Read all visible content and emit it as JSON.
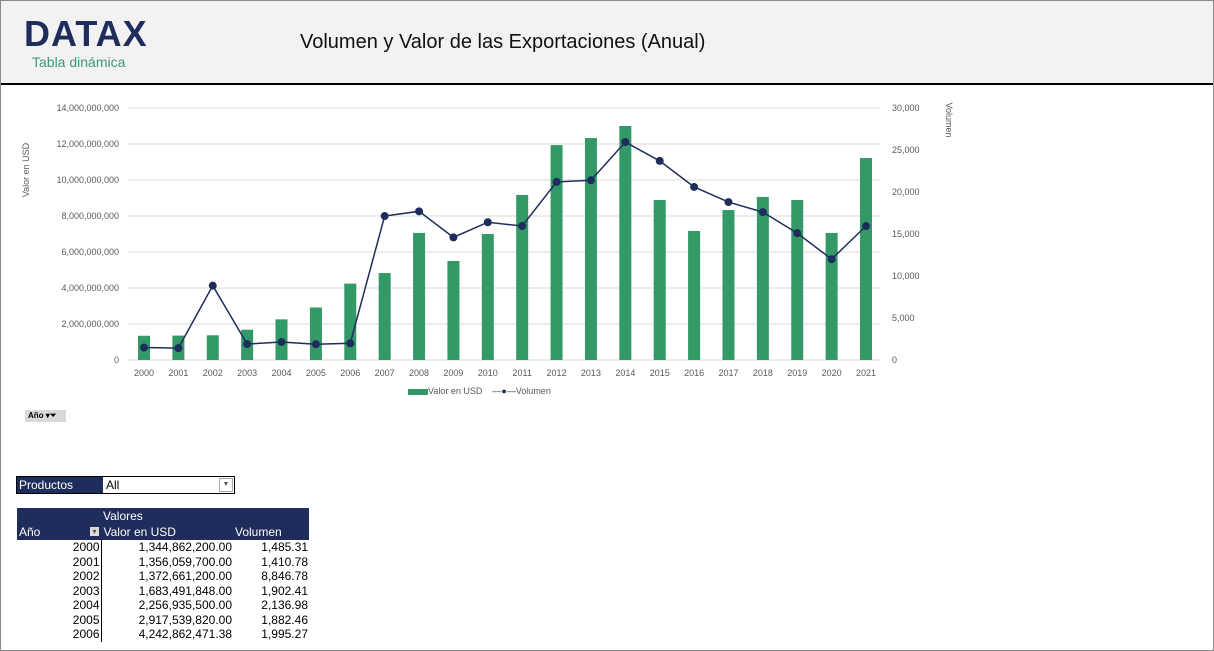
{
  "header": {
    "logo": "DATAX",
    "subtitle": "Tabla dinámica",
    "title": "Volumen y Valor de las Exportaciones (Anual)"
  },
  "chart_data": {
    "type": "bar+line",
    "categories": [
      "2000",
      "2001",
      "2002",
      "2003",
      "2004",
      "2005",
      "2006",
      "2007",
      "2008",
      "2009",
      "2010",
      "2011",
      "2012",
      "2013",
      "2014",
      "2015",
      "2016",
      "2017",
      "2018",
      "2019",
      "2020",
      "2021"
    ],
    "series": [
      {
        "name": "Valor en USD",
        "type": "bar",
        "axis": "left",
        "color": "#339966",
        "values": [
          1344862200,
          1356059700,
          1372661200,
          1683491848,
          2256935500,
          2917539820,
          4242862471.38,
          4830000000,
          7060000000,
          5500000000,
          7000000000,
          9170000000,
          11940000000,
          12330000000,
          13000000000,
          8890000000,
          7170000000,
          8330000000,
          9060000000,
          8890000000,
          7060000000,
          11220000000
        ]
      },
      {
        "name": "Volumen",
        "type": "line",
        "axis": "right",
        "color": "#1f2d5c",
        "values": [
          1485.31,
          1410.78,
          8846.78,
          1902.41,
          2136.98,
          1882.46,
          1995.27,
          17140,
          17700,
          14600,
          16400,
          15950,
          21200,
          21400,
          25950,
          23700,
          20600,
          18800,
          17600,
          15100,
          12000,
          15950
        ]
      }
    ],
    "ylabel": "Valor en USD",
    "y2label": "Volumen",
    "ylim": [
      0,
      14000000000
    ],
    "y2lim": [
      0,
      30000
    ],
    "yticks": [
      "0",
      "2,000,000,000",
      "4,000,000,000",
      "6,000,000,000",
      "8,000,000,000",
      "10,000,000,000",
      "12,000,000,000",
      "14,000,000,000"
    ],
    "y2ticks": [
      "0",
      "5,000",
      "10,000",
      "15,000",
      "20,000",
      "25,000",
      "30,000"
    ],
    "grid": true,
    "legend": "bottom"
  },
  "filter": {
    "label": "Año"
  },
  "slicer": {
    "label": "Productos",
    "value": "All"
  },
  "table": {
    "values_header": "Valores",
    "headers": [
      "Año",
      "Valor en USD",
      "Volumen"
    ],
    "rows": [
      [
        "2000",
        "1,344,862,200.00",
        "1,485.31"
      ],
      [
        "2001",
        "1,356,059,700.00",
        "1,410.78"
      ],
      [
        "2002",
        "1,372,661,200.00",
        "8,846.78"
      ],
      [
        "2003",
        "1,683,491,848.00",
        "1,902.41"
      ],
      [
        "2004",
        "2,256,935,500.00",
        "2,136.98"
      ],
      [
        "2005",
        "2,917,539,820.00",
        "1,882.46"
      ],
      [
        "2006",
        "4,242,862,471.38",
        "1,995.27"
      ]
    ]
  }
}
